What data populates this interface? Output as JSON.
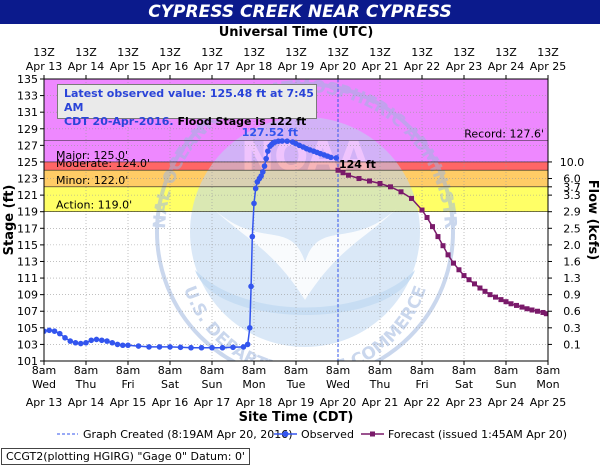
{
  "title": "CYPRESS CREEK NEAR CYPRESS",
  "chart_data": {
    "type": "line",
    "top_axis_title": "Universal Time (UTC)",
    "top_ticks": [
      {
        "a": "13Z",
        "b": "Apr 13"
      },
      {
        "a": "13Z",
        "b": "Apr 14"
      },
      {
        "a": "13Z",
        "b": "Apr 15"
      },
      {
        "a": "13Z",
        "b": "Apr 16"
      },
      {
        "a": "13Z",
        "b": "Apr 17"
      },
      {
        "a": "13Z",
        "b": "Apr 18"
      },
      {
        "a": "13Z",
        "b": "Apr 19"
      },
      {
        "a": "13Z",
        "b": "Apr 20"
      },
      {
        "a": "13Z",
        "b": "Apr 21"
      },
      {
        "a": "13Z",
        "b": "Apr 22"
      },
      {
        "a": "13Z",
        "b": "Apr 23"
      },
      {
        "a": "13Z",
        "b": "Apr 24"
      },
      {
        "a": "13Z",
        "b": "Apr 25"
      }
    ],
    "xlabel": "Site Time (CDT)",
    "bottom_ticks": [
      {
        "t": "8am",
        "d": "Wed",
        "date": "Apr 13"
      },
      {
        "t": "8am",
        "d": "Thu",
        "date": "Apr 14"
      },
      {
        "t": "8am",
        "d": "Fri",
        "date": "Apr 15"
      },
      {
        "t": "8am",
        "d": "Sat",
        "date": "Apr 16"
      },
      {
        "t": "8am",
        "d": "Sun",
        "date": "Apr 17"
      },
      {
        "t": "8am",
        "d": "Mon",
        "date": "Apr 18"
      },
      {
        "t": "8am",
        "d": "Tue",
        "date": "Apr 19"
      },
      {
        "t": "8am",
        "d": "Wed",
        "date": "Apr 20"
      },
      {
        "t": "8am",
        "d": "Thu",
        "date": "Apr 21"
      },
      {
        "t": "8am",
        "d": "Fri",
        "date": "Apr 22"
      },
      {
        "t": "8am",
        "d": "Sat",
        "date": "Apr 23"
      },
      {
        "t": "8am",
        "d": "Sun",
        "date": "Apr 24"
      },
      {
        "t": "8am",
        "d": "Mon",
        "date": "Apr 25"
      }
    ],
    "x_unit": "days after Apr 13 8am CDT",
    "xlim": [
      0,
      12
    ],
    "ylabel": "Stage (ft)",
    "ylim": [
      101,
      135
    ],
    "y_ticks": [
      101,
      103,
      105,
      107,
      109,
      111,
      113,
      115,
      117,
      119,
      121,
      123,
      125,
      127,
      129,
      131,
      133,
      135
    ],
    "y2label": "Flow (kcfs)",
    "flow_ticks": [
      {
        "label": "0.1",
        "stage": 103
      },
      {
        "label": "0.3",
        "stage": 105
      },
      {
        "label": "0.6",
        "stage": 107
      },
      {
        "label": "0.9",
        "stage": 109
      },
      {
        "label": "1.3",
        "stage": 111
      },
      {
        "label": "1.6",
        "stage": 113
      },
      {
        "label": "2.0",
        "stage": 115
      },
      {
        "label": "2.5",
        "stage": 117
      },
      {
        "label": "2.9",
        "stage": 119
      },
      {
        "label": "3.3",
        "stage": 121
      },
      {
        "label": "3.7",
        "stage": 122
      },
      {
        "label": "6.0",
        "stage": 123
      },
      {
        "label": "10.0",
        "stage": 125
      }
    ],
    "grid": true,
    "bands": [
      {
        "name": "Action",
        "label": "Action: 119.0'",
        "from": 119,
        "to": 122,
        "color": "#ffff66"
      },
      {
        "name": "Minor",
        "label": "Minor: 122.0'",
        "from": 122,
        "to": 124,
        "color": "#ffcc66"
      },
      {
        "name": "Moderate",
        "label": "Moderate: 124.0'",
        "from": 124,
        "to": 125,
        "color": "#ff6666"
      },
      {
        "name": "Major",
        "label": "Major: 125.0'",
        "from": 125,
        "to": 135,
        "color": "#ee88ff"
      }
    ],
    "record": {
      "label": "Record: 127.6'",
      "value": 127.6
    },
    "crest_label": "127.52 ft",
    "crest": {
      "x": 5.33,
      "y": 127.52
    },
    "forecast_label": "124 ft",
    "forecast_label_at": {
      "x": 7.0,
      "y": 124
    },
    "now_x": 7.0,
    "series": [
      {
        "name": "Observed",
        "color": "#3355ee",
        "points": [
          [
            0.0,
            104.6
          ],
          [
            0.125,
            104.7
          ],
          [
            0.25,
            104.6
          ],
          [
            0.375,
            104.3
          ],
          [
            0.5,
            103.8
          ],
          [
            0.625,
            103.4
          ],
          [
            0.75,
            103.2
          ],
          [
            0.875,
            103.1
          ],
          [
            1.0,
            103.2
          ],
          [
            1.125,
            103.5
          ],
          [
            1.25,
            103.6
          ],
          [
            1.375,
            103.5
          ],
          [
            1.5,
            103.4
          ],
          [
            1.625,
            103.2
          ],
          [
            1.75,
            103.0
          ],
          [
            1.875,
            102.9
          ],
          [
            2.0,
            102.9
          ],
          [
            2.25,
            102.8
          ],
          [
            2.5,
            102.7
          ],
          [
            2.75,
            102.7
          ],
          [
            3.0,
            102.7
          ],
          [
            3.25,
            102.65
          ],
          [
            3.5,
            102.6
          ],
          [
            3.75,
            102.6
          ],
          [
            4.0,
            102.6
          ],
          [
            4.25,
            102.6
          ],
          [
            4.5,
            102.65
          ],
          [
            4.75,
            102.7
          ],
          [
            4.85,
            103.0
          ],
          [
            4.9,
            105.0
          ],
          [
            4.93,
            110.0
          ],
          [
            4.96,
            116.0
          ],
          [
            5.0,
            120.0
          ],
          [
            5.04,
            121.8
          ],
          [
            5.08,
            122.6
          ],
          [
            5.13,
            123.0
          ],
          [
            5.17,
            123.3
          ],
          [
            5.21,
            123.8
          ],
          [
            5.25,
            124.5
          ],
          [
            5.29,
            125.4
          ],
          [
            5.33,
            126.3
          ],
          [
            5.38,
            126.9
          ],
          [
            5.42,
            127.1
          ],
          [
            5.46,
            127.3
          ],
          [
            5.5,
            127.4
          ],
          [
            5.58,
            127.5
          ],
          [
            5.67,
            127.52
          ],
          [
            5.79,
            127.5
          ],
          [
            5.92,
            127.4
          ],
          [
            6.0,
            127.2
          ],
          [
            6.08,
            127.0
          ],
          [
            6.17,
            126.8
          ],
          [
            6.25,
            126.6
          ],
          [
            6.33,
            126.45
          ],
          [
            6.42,
            126.3
          ],
          [
            6.5,
            126.15
          ],
          [
            6.58,
            126.0
          ],
          [
            6.67,
            125.85
          ],
          [
            6.75,
            125.7
          ],
          [
            6.83,
            125.55
          ],
          [
            6.96,
            125.48
          ]
        ]
      },
      {
        "name": "Forecast",
        "color": "#7a1a6a",
        "points": [
          [
            7.0,
            124.0
          ],
          [
            7.12,
            123.7
          ],
          [
            7.25,
            123.4
          ],
          [
            7.5,
            123.0
          ],
          [
            7.75,
            122.7
          ],
          [
            8.0,
            122.4
          ],
          [
            8.25,
            122.0
          ],
          [
            8.5,
            121.4
          ],
          [
            8.75,
            120.6
          ],
          [
            9.0,
            119.2
          ],
          [
            9.12,
            118.3
          ],
          [
            9.25,
            117.2
          ],
          [
            9.38,
            116.0
          ],
          [
            9.5,
            114.9
          ],
          [
            9.62,
            113.8
          ],
          [
            9.75,
            112.8
          ],
          [
            9.88,
            112.0
          ],
          [
            10.0,
            111.3
          ],
          [
            10.12,
            110.8
          ],
          [
            10.25,
            110.3
          ],
          [
            10.38,
            109.8
          ],
          [
            10.5,
            109.4
          ],
          [
            10.62,
            109.0
          ],
          [
            10.75,
            108.7
          ],
          [
            10.88,
            108.4
          ],
          [
            11.0,
            108.15
          ],
          [
            11.12,
            107.9
          ],
          [
            11.25,
            107.7
          ],
          [
            11.38,
            107.5
          ],
          [
            11.5,
            107.3
          ],
          [
            11.62,
            107.15
          ],
          [
            11.75,
            107.0
          ],
          [
            11.88,
            106.85
          ],
          [
            11.96,
            106.7
          ]
        ]
      }
    ],
    "legend": {
      "created": "Graph Created (8:19AM Apr 20, 2016)",
      "observed": "Observed",
      "forecast": "Forecast (issued 1:45AM Apr 20)"
    }
  },
  "latest_observation": {
    "line1": "Latest observed value: 125.48 ft at 7:45 AM",
    "line2_blue": "CDT 20-Apr-2016.",
    "line2_black": "Flood Stage is 122 ft"
  },
  "footer": "CCGT2(plotting HGIRG) \"Gage 0\" Datum: 0'",
  "watermark": {
    "top_text": "NATIONAL OCEANIC AND ATMOSPHERIC ADMINISTRATION",
    "bottom_text": "U.S. DEPARTMENT OF COMMERCE",
    "center_text": "NOAA"
  }
}
